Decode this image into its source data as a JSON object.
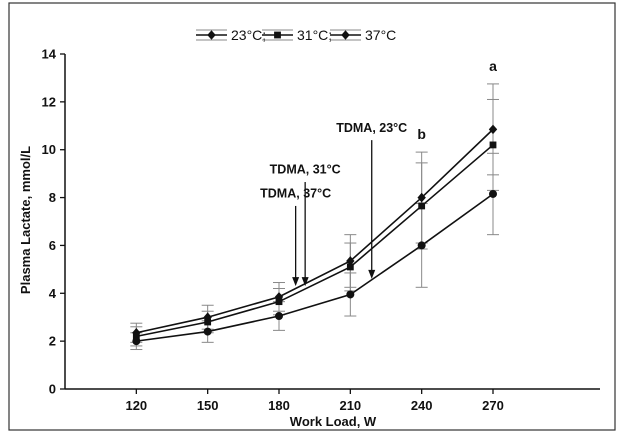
{
  "chart_data": {
    "type": "line",
    "xlabel": "Work Load, W",
    "ylabel": "Plasma Lactate, mmol/L",
    "x": [
      120,
      150,
      180,
      210,
      240,
      270
    ],
    "x_ticks": [
      "120",
      "150",
      "180",
      "210",
      "240",
      "270"
    ],
    "y_ticks": [
      "0",
      "2",
      "4",
      "6",
      "8",
      "10",
      "12",
      "14"
    ],
    "xlim": [
      90,
      315
    ],
    "ylim": [
      0,
      14
    ],
    "grid": false,
    "legend_position": "top-center",
    "legend_separator": ";",
    "series": [
      {
        "name": "23°C",
        "marker": "diamond",
        "values": [
          2.35,
          3.0,
          3.85,
          5.35,
          8.0,
          10.85
        ],
        "errors": [
          0.4,
          0.5,
          0.6,
          1.1,
          1.9,
          1.9
        ]
      },
      {
        "name": "31°C",
        "marker": "square",
        "values": [
          2.2,
          2.8,
          3.65,
          5.1,
          7.65,
          10.2
        ],
        "errors": [
          0.4,
          0.45,
          0.55,
          1.0,
          1.8,
          1.9
        ]
      },
      {
        "name": "37°C",
        "marker": "diamond",
        "values": [
          2.0,
          2.4,
          3.05,
          3.95,
          6.0,
          8.15
        ],
        "errors": [
          0.35,
          0.45,
          0.6,
          0.9,
          1.75,
          1.7
        ]
      }
    ],
    "annotations": [
      {
        "text": "TDMA, 37°C",
        "x": 187,
        "y_text": 8.0,
        "y_arrow_start": 7.65,
        "y_arrow_end": 4.3
      },
      {
        "text": "TDMA, 31°C",
        "x": 191,
        "y_text": 9.0,
        "y_arrow_start": 8.65,
        "y_arrow_end": 4.3
      },
      {
        "text": "TDMA, 23°C",
        "x": 219,
        "y_text": 10.75,
        "y_arrow_start": 10.4,
        "y_arrow_end": 4.6
      }
    ],
    "significance_labels": [
      {
        "text": "b",
        "x": 240,
        "y": 10.45
      },
      {
        "text": "a",
        "x": 270,
        "y": 13.3
      }
    ],
    "colors": {
      "line": "#111111",
      "error_bar": "#888888",
      "frame": "#333333"
    }
  }
}
